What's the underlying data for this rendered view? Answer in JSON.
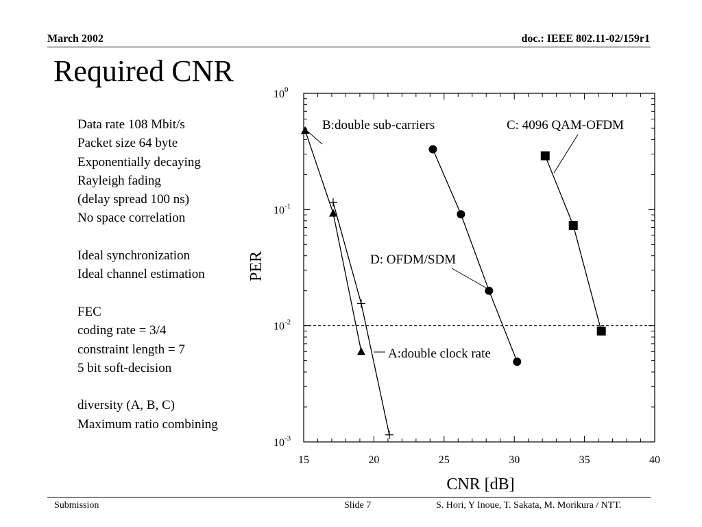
{
  "header": {
    "left": "March  2002",
    "right": "doc.: IEEE 802.11-02/159r1"
  },
  "slide_title": "Required CNR",
  "params": [
    "Data rate 108 Mbit/s",
    "Packet size 64 byte",
    "Exponentially decaying",
    "Rayleigh fading",
    "(delay spread 100 ns)",
    "No space correlation",
    "",
    "Ideal synchronization",
    "Ideal channel estimation",
    "",
    "FEC",
    "coding rate = 3/4",
    "constraint length = 7",
    "5 bit soft-decision",
    "",
    "diversity (A, B, C)",
    "Maximum ratio combining"
  ],
  "footer": {
    "left": "Submission",
    "center": "Slide 7",
    "right": "S. Hori, Y Inoue, T. Sakata, M. Morikura / NTT."
  },
  "chart_data": {
    "type": "line",
    "xlabel": "CNR [dB]",
    "ylabel": "PER",
    "xlim": [
      15,
      40
    ],
    "ylim": [
      0.001,
      1
    ],
    "yscale": "log",
    "x_ticks": [
      "15",
      "20",
      "25",
      "30",
      "35",
      "40"
    ],
    "y_ticks": [
      {
        "base": "10",
        "exp": "0",
        "value": 1
      },
      {
        "base": "10",
        "exp": "-1",
        "value": 0.1
      },
      {
        "base": "10",
        "exp": "-2",
        "value": 0.01
      },
      {
        "base": "10",
        "exp": "-3",
        "value": 0.001
      }
    ],
    "reference_line": {
      "y": 0.01,
      "style": "dashed"
    },
    "series": [
      {
        "name": "A:double clock rate",
        "marker": "plus",
        "x": [
          17.1,
          19.1,
          21.1
        ],
        "y": [
          0.115,
          0.0155,
          0.00115
        ]
      },
      {
        "name": "B:double sub-carriers",
        "marker": "triangle",
        "x": [
          15.1,
          17.1,
          19.1
        ],
        "y": [
          0.48,
          0.093,
          0.006
        ]
      },
      {
        "name": "C: 4096 QAM-OFDM",
        "marker": "square",
        "x": [
          32.2,
          34.2,
          36.2
        ],
        "y": [
          0.29,
          0.073,
          0.009
        ]
      },
      {
        "name": "D: OFDM/SDM",
        "marker": "circle",
        "x": [
          24.2,
          26.2,
          28.2,
          30.2
        ],
        "y": [
          0.33,
          0.091,
          0.02,
          0.0049
        ]
      }
    ]
  }
}
